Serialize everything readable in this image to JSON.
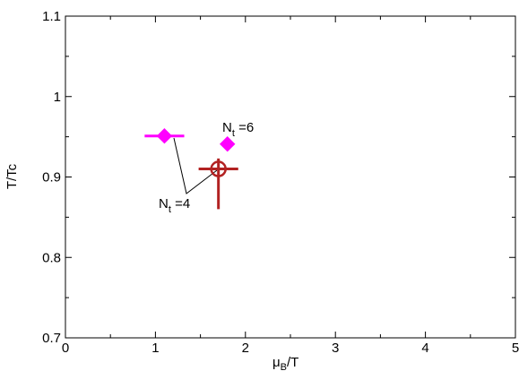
{
  "chart_data": {
    "type": "scatter",
    "xlabel_main": "μ",
    "xlabel_sub": "B",
    "xlabel_tail": "/T",
    "ylabel": "T/Tc",
    "xlim": [
      0,
      5
    ],
    "ylim": [
      0.7,
      1.1
    ],
    "x_ticks": [
      0,
      1,
      2,
      3,
      4,
      5
    ],
    "y_ticks": [
      0.7,
      0.8,
      0.9,
      1.0,
      1.1
    ],
    "x_tick_labels": [
      "0",
      "1",
      "2",
      "3",
      "4",
      "5"
    ],
    "y_tick_labels": [
      "0.7",
      "0.8",
      "0.9",
      "1",
      "1.1"
    ],
    "grid": false,
    "series": [
      {
        "marker": "filled-diamond",
        "color": "#ff00ff",
        "points": [
          {
            "x": 1.1,
            "y": 0.951,
            "xerr": 0.22,
            "yerr": 0.006
          },
          {
            "x": 1.8,
            "y": 0.941,
            "xerr": 0.07,
            "yerr": 0.008
          }
        ]
      },
      {
        "marker": "open-circle-cross",
        "color": "#b22222",
        "points": [
          {
            "x": 1.7,
            "y": 0.91,
            "xerr": 0.22,
            "yerr_low": 0.05,
            "yerr_high": 0.013
          }
        ]
      }
    ],
    "annotations": [
      {
        "main": "N",
        "sub": "t",
        "tail": " =4"
      },
      {
        "main": "N",
        "sub": "t",
        "tail": " =6"
      }
    ]
  }
}
